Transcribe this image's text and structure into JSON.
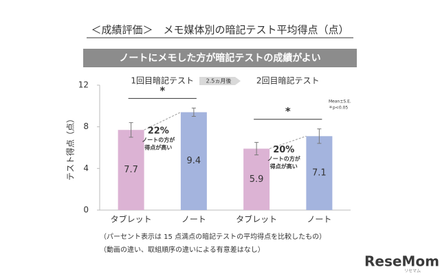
{
  "title": "＜成績評価＞　メモ媒体別の暗記テスト平均得点（点）",
  "banner": "ノートにメモした方が暗記テストの成績がよい",
  "chart_data": {
    "type": "bar",
    "ylabel": "テスト得点（点）",
    "ylim": [
      0,
      12
    ],
    "yticks": [
      0,
      4,
      8,
      12
    ],
    "interval_label": "2.5ヵ月後",
    "groups": [
      {
        "title": "1回目暗記テスト",
        "categories": [
          "タブレット",
          "ノート"
        ],
        "values": [
          7.7,
          9.4
        ],
        "errors": [
          0.7,
          0.4
        ],
        "colors": [
          "#dcb3d4",
          "#a4b4de"
        ],
        "significance": "*",
        "annotation": {
          "percent": "22%",
          "text": [
            "ノートの方が",
            "得点が高い"
          ]
        }
      },
      {
        "title": "2回目暗記テスト",
        "categories": [
          "タブレット",
          "ノート"
        ],
        "values": [
          5.9,
          7.1
        ],
        "errors": [
          0.6,
          0.7
        ],
        "colors": [
          "#dcb3d4",
          "#a4b4de"
        ],
        "significance": "*",
        "annotation": {
          "percent": "20%",
          "text": [
            "ノートの方が",
            "得点が高い"
          ]
        }
      }
    ],
    "legend_note": [
      "Mean±S.E.",
      "＊p<0.05"
    ]
  },
  "footnotes": [
    "（パーセント表示は 15 点満点の暗記テストの平均得点を比較したもの）",
    "（動画の違い、取組順序の違いによる有意差はなし）"
  ],
  "logo": {
    "name": "ReseMom",
    "sub": "リセマム"
  }
}
